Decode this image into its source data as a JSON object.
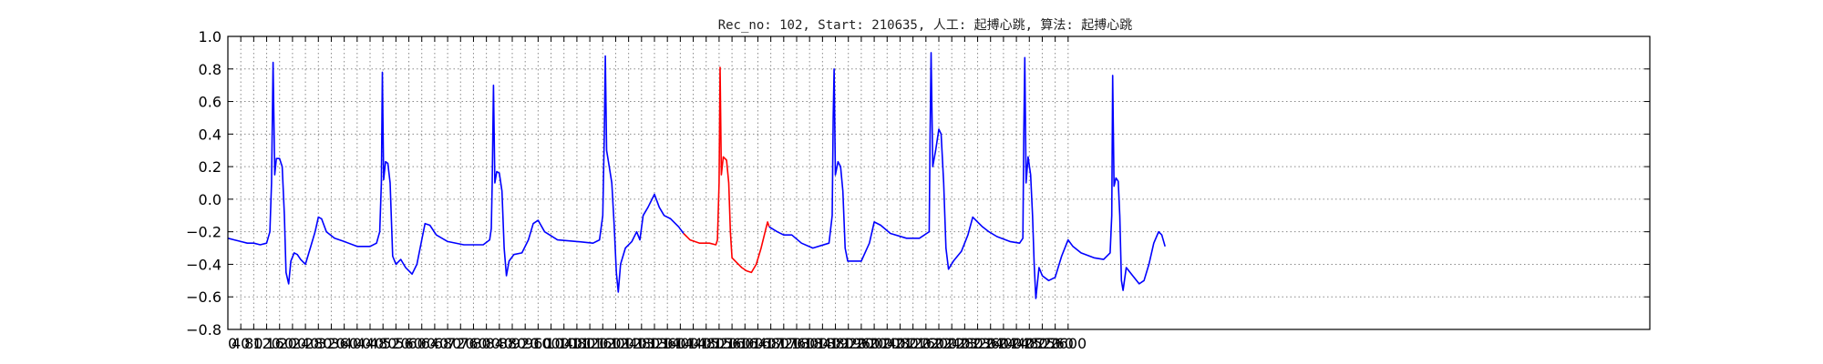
{
  "chart_data": {
    "type": "line",
    "title": "Rec_no: 102, Start: 210635, 人工: 起搏心跳, 算法: 起搏心跳",
    "xlabel": "",
    "ylabel": "",
    "xlim": [
      0,
      4400
    ],
    "ylim": [
      -0.8,
      1.0
    ],
    "grid": true,
    "yticks": [
      1.0,
      0.8,
      0.6,
      0.4,
      0.2,
      0.0,
      -0.2,
      -0.4,
      -0.6,
      -0.8
    ],
    "ytick_labels": [
      "1.0",
      "0.8",
      "0.6",
      "0.4",
      "0.2",
      "0.0",
      "−0.2",
      "−0.4",
      "−0.6",
      "−0.8"
    ],
    "xticks": [
      0,
      40,
      80,
      120,
      160,
      200,
      240,
      280,
      320,
      360,
      400,
      440,
      480,
      520,
      560,
      600,
      640,
      680,
      720,
      760,
      800,
      840,
      880,
      920,
      960,
      1000,
      1040,
      1080,
      1120,
      1160,
      1200,
      1240,
      1280,
      1320,
      1360,
      1400,
      1440,
      1480,
      1520,
      1560,
      1600,
      1640,
      1680,
      1720,
      1760,
      1800,
      1840,
      1880,
      1920,
      1960,
      2000,
      2040,
      2080,
      2120,
      2160,
      2200,
      2240,
      2280,
      2320,
      2360,
      2400,
      2440,
      2480,
      2520,
      2560,
      2600
    ],
    "xtick_labels": [
      "0",
      "40",
      "80",
      "120",
      "160",
      "200",
      "240",
      "280",
      "320",
      "360",
      "400",
      "440",
      "480",
      "520",
      "560",
      "600",
      "640",
      "680",
      "720",
      "760",
      "800",
      "840",
      "880",
      "920",
      "960",
      "1000",
      "1040",
      "1080",
      "1120",
      "1160",
      "1200",
      "1240",
      "1280",
      "1320",
      "1360",
      "1400",
      "1440",
      "1480",
      "1520",
      "1560",
      "1600",
      "1640",
      "1680",
      "1720",
      "1760",
      "1800",
      "1840",
      "1880",
      "1920",
      "1960",
      "2000",
      "2040",
      "2080",
      "2120",
      "2160",
      "2200",
      "2240",
      "2280",
      "2320",
      "2360",
      "2400",
      "2440",
      "2480",
      "2520",
      "2560",
      "2600"
    ],
    "series": [
      {
        "color": "#0000ff",
        "points": [
          [
            0,
            -0.24
          ],
          [
            20,
            -0.25
          ],
          [
            40,
            -0.26
          ],
          [
            60,
            -0.27
          ],
          [
            80,
            -0.27
          ],
          [
            100,
            -0.28
          ],
          [
            120,
            -0.27
          ],
          [
            130,
            -0.2
          ],
          [
            135,
            0.1
          ],
          [
            140,
            0.84
          ],
          [
            145,
            0.15
          ],
          [
            150,
            0.25
          ],
          [
            160,
            0.25
          ],
          [
            168,
            0.2
          ],
          [
            175,
            -0.1
          ],
          [
            180,
            -0.45
          ],
          [
            188,
            -0.52
          ],
          [
            195,
            -0.38
          ],
          [
            205,
            -0.33
          ],
          [
            215,
            -0.34
          ],
          [
            225,
            -0.37
          ],
          [
            240,
            -0.4
          ],
          [
            255,
            -0.3
          ],
          [
            270,
            -0.2
          ],
          [
            280,
            -0.11
          ],
          [
            290,
            -0.12
          ],
          [
            305,
            -0.2
          ],
          [
            330,
            -0.24
          ],
          [
            360,
            -0.26
          ],
          [
            400,
            -0.29
          ],
          [
            440,
            -0.29
          ],
          [
            460,
            -0.27
          ],
          [
            470,
            -0.2
          ],
          [
            475,
            0.1
          ],
          [
            478,
            0.78
          ],
          [
            482,
            0.12
          ],
          [
            488,
            0.23
          ],
          [
            495,
            0.22
          ],
          [
            502,
            0.1
          ],
          [
            510,
            -0.35
          ],
          [
            520,
            -0.4
          ],
          [
            535,
            -0.37
          ],
          [
            550,
            -0.42
          ],
          [
            570,
            -0.46
          ],
          [
            585,
            -0.4
          ],
          [
            600,
            -0.25
          ],
          [
            610,
            -0.15
          ],
          [
            625,
            -0.16
          ],
          [
            645,
            -0.22
          ],
          [
            680,
            -0.26
          ],
          [
            730,
            -0.28
          ],
          [
            790,
            -0.28
          ],
          [
            810,
            -0.25
          ],
          [
            815,
            -0.18
          ],
          [
            818,
            0.1
          ],
          [
            822,
            0.7
          ],
          [
            826,
            0.1
          ],
          [
            832,
            0.17
          ],
          [
            840,
            0.16
          ],
          [
            848,
            0.05
          ],
          [
            855,
            -0.3
          ],
          [
            862,
            -0.47
          ],
          [
            870,
            -0.38
          ],
          [
            885,
            -0.34
          ],
          [
            910,
            -0.33
          ],
          [
            930,
            -0.25
          ],
          [
            945,
            -0.15
          ],
          [
            960,
            -0.13
          ],
          [
            980,
            -0.2
          ],
          [
            1020,
            -0.25
          ],
          [
            1080,
            -0.26
          ],
          [
            1130,
            -0.27
          ],
          [
            1150,
            -0.25
          ],
          [
            1160,
            -0.1
          ],
          [
            1165,
            0.4
          ],
          [
            1168,
            0.88
          ],
          [
            1172,
            0.3
          ],
          [
            1180,
            0.2
          ],
          [
            1188,
            0.1
          ],
          [
            1195,
            -0.15
          ],
          [
            1202,
            -0.45
          ],
          [
            1208,
            -0.57
          ],
          [
            1215,
            -0.4
          ],
          [
            1230,
            -0.3
          ],
          [
            1250,
            -0.26
          ],
          [
            1265,
            -0.2
          ],
          [
            1275,
            -0.25
          ],
          [
            1285,
            -0.1
          ],
          [
            1300,
            -0.05
          ],
          [
            1320,
            0.03
          ],
          [
            1335,
            -0.05
          ],
          [
            1350,
            -0.1
          ],
          [
            1370,
            -0.12
          ],
          [
            1395,
            -0.17
          ],
          [
            1410,
            -0.21
          ]
        ]
      },
      {
        "color": "#ff0000",
        "points": [
          [
            1410,
            -0.21
          ],
          [
            1430,
            -0.25
          ],
          [
            1460,
            -0.27
          ],
          [
            1490,
            -0.27
          ],
          [
            1510,
            -0.28
          ],
          [
            1515,
            -0.25
          ],
          [
            1520,
            0.1
          ],
          [
            1523,
            0.81
          ],
          [
            1527,
            0.15
          ],
          [
            1533,
            0.26
          ],
          [
            1543,
            0.24
          ],
          [
            1550,
            0.1
          ],
          [
            1555,
            -0.2
          ],
          [
            1560,
            -0.36
          ],
          [
            1575,
            -0.39
          ],
          [
            1590,
            -0.42
          ],
          [
            1605,
            -0.44
          ],
          [
            1620,
            -0.45
          ],
          [
            1635,
            -0.4
          ],
          [
            1650,
            -0.3
          ],
          [
            1665,
            -0.18
          ],
          [
            1670,
            -0.14
          ],
          [
            1675,
            -0.17
          ]
        ]
      },
      {
        "color": "#0000ff",
        "points": [
          [
            1675,
            -0.17
          ],
          [
            1700,
            -0.2
          ],
          [
            1720,
            -0.22
          ],
          [
            1745,
            -0.22
          ],
          [
            1775,
            -0.27
          ],
          [
            1810,
            -0.3
          ],
          [
            1860,
            -0.27
          ],
          [
            1870,
            -0.1
          ],
          [
            1873,
            0.5
          ],
          [
            1876,
            0.8
          ],
          [
            1880,
            0.15
          ],
          [
            1888,
            0.23
          ],
          [
            1896,
            0.2
          ],
          [
            1903,
            0.05
          ],
          [
            1910,
            -0.3
          ],
          [
            1918,
            -0.38
          ],
          [
            1930,
            -0.38
          ],
          [
            1960,
            -0.38
          ],
          [
            1985,
            -0.27
          ],
          [
            2000,
            -0.14
          ],
          [
            2020,
            -0.16
          ],
          [
            2050,
            -0.21
          ],
          [
            2100,
            -0.24
          ],
          [
            2140,
            -0.24
          ],
          [
            2170,
            -0.2
          ],
          [
            2173,
            0.4
          ],
          [
            2176,
            0.9
          ],
          [
            2181,
            0.2
          ],
          [
            2190,
            0.3
          ],
          [
            2200,
            0.43
          ],
          [
            2207,
            0.4
          ],
          [
            2215,
            0.1
          ],
          [
            2222,
            -0.3
          ],
          [
            2230,
            -0.43
          ],
          [
            2245,
            -0.38
          ],
          [
            2270,
            -0.32
          ],
          [
            2290,
            -0.22
          ],
          [
            2305,
            -0.11
          ],
          [
            2320,
            -0.14
          ],
          [
            2335,
            -0.17
          ],
          [
            2355,
            -0.2
          ],
          [
            2380,
            -0.23
          ],
          [
            2420,
            -0.26
          ],
          [
            2450,
            -0.27
          ],
          [
            2460,
            -0.24
          ],
          [
            2463,
            0.4
          ],
          [
            2466,
            0.87
          ],
          [
            2470,
            0.1
          ],
          [
            2476,
            0.26
          ],
          [
            2484,
            0.15
          ],
          [
            2490,
            -0.1
          ],
          [
            2495,
            -0.4
          ],
          [
            2500,
            -0.61
          ],
          [
            2510,
            -0.42
          ],
          [
            2520,
            -0.47
          ],
          [
            2540,
            -0.5
          ],
          [
            2560,
            -0.48
          ],
          [
            2580,
            -0.35
          ],
          [
            2600,
            -0.25
          ],
          [
            2615,
            -0.29
          ],
          [
            2640,
            -0.33
          ],
          [
            2680,
            -0.36
          ],
          [
            2710,
            -0.37
          ],
          [
            2730,
            -0.33
          ],
          [
            2735,
            -0.1
          ],
          [
            2738,
            0.76
          ],
          [
            2742,
            0.08
          ],
          [
            2748,
            0.13
          ],
          [
            2755,
            0.11
          ],
          [
            2760,
            -0.1
          ],
          [
            2765,
            -0.5
          ],
          [
            2770,
            -0.56
          ],
          [
            2780,
            -0.42
          ],
          [
            2800,
            -0.47
          ],
          [
            2820,
            -0.52
          ],
          [
            2835,
            -0.5
          ],
          [
            2850,
            -0.4
          ],
          [
            2865,
            -0.27
          ],
          [
            2880,
            -0.2
          ],
          [
            2890,
            -0.22
          ],
          [
            2900,
            -0.29
          ]
        ]
      }
    ]
  }
}
